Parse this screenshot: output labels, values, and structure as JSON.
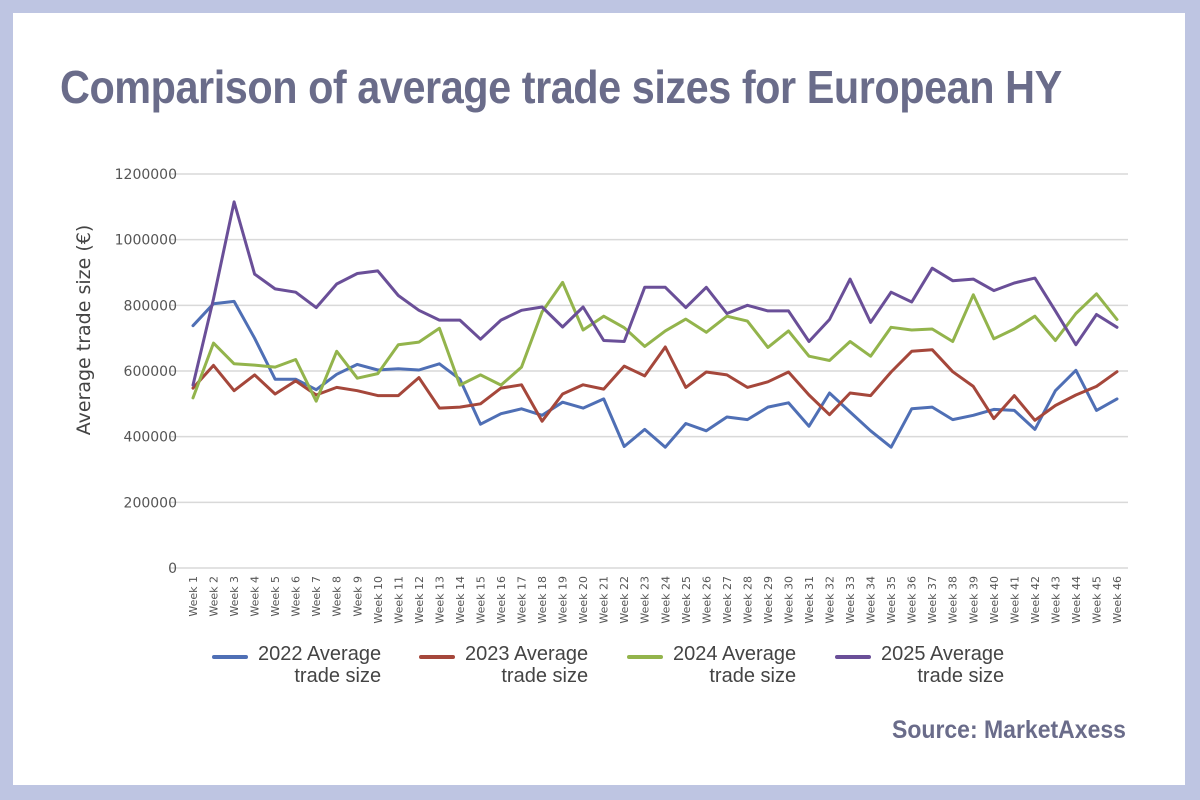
{
  "frame": {
    "border_color": "#bec5e2",
    "title": "Comparison of average trade sizes for European HY",
    "source": "Source: MarketAxess"
  },
  "chart_data": {
    "type": "line",
    "title": "Comparison of average trade sizes for European HY",
    "xlabel": "",
    "ylabel": "Average trade size (€)",
    "ylim": [
      0,
      1200000
    ],
    "yticks": [
      0,
      200000,
      400000,
      600000,
      800000,
      1000000,
      1200000
    ],
    "ytick_labels": [
      "0",
      "200000",
      "400000",
      "600000",
      "800000",
      "1000000",
      "1200000"
    ],
    "grid": true,
    "legend_position": "bottom",
    "x": [
      "Week 1",
      "Week 2",
      "Week 3",
      "Week 4",
      "Week 5",
      "Week 6",
      "Week 7",
      "Week 8",
      "Week 9",
      "Week 10",
      "Week 11",
      "Week 12",
      "Week 13",
      "Week 14",
      "Week 15",
      "Week 16",
      "Week 17",
      "Week 18",
      "Week 19",
      "Week 20",
      "Week 21",
      "Week 22",
      "Week 23",
      "Week 24",
      "Week 25",
      "Week 26",
      "Week 27",
      "Week 28",
      "Week 29",
      "Week 30",
      "Week 31",
      "Week 32",
      "Week 33",
      "Week 34",
      "Week 35",
      "Week 36",
      "Week 37",
      "Week 38",
      "Week 39",
      "Week 40",
      "Week 41",
      "Week 42",
      "Week 43",
      "Week 44",
      "Week 45",
      "Week 46"
    ],
    "series": [
      {
        "name": "2022 Average trade size",
        "legend_line1": "2022 Average",
        "legend_line2": "trade size",
        "color": "#4f6fb5",
        "values": [
          738000,
          805000,
          812000,
          700000,
          575000,
          575000,
          543000,
          590000,
          620000,
          603000,
          607000,
          603000,
          622000,
          575000,
          438000,
          470000,
          485000,
          465000,
          505000,
          487000,
          515000,
          370000,
          422000,
          368000,
          440000,
          418000,
          460000,
          452000,
          490000,
          503000,
          432000,
          533000,
          475000,
          418000,
          368000,
          485000,
          490000,
          452000,
          465000,
          483000,
          480000,
          422000,
          540000,
          602000,
          480000,
          515000
        ]
      },
      {
        "name": "2023 Average trade size",
        "legend_line1": "2023 Average",
        "legend_line2": "trade size",
        "color": "#a5473b",
        "values": [
          548000,
          617000,
          540000,
          588000,
          530000,
          570000,
          527000,
          550000,
          540000,
          525000,
          525000,
          580000,
          487000,
          490000,
          500000,
          548000,
          558000,
          447000,
          530000,
          558000,
          545000,
          615000,
          585000,
          673000,
          550000,
          597000,
          588000,
          550000,
          567000,
          597000,
          527000,
          467000,
          533000,
          525000,
          597000,
          660000,
          665000,
          598000,
          553000,
          455000,
          525000,
          450000,
          495000,
          527000,
          553000,
          598000
        ]
      },
      {
        "name": "2024 Average trade size",
        "legend_line1": "2024 Average",
        "legend_line2": "trade size",
        "color": "#93b44c",
        "values": [
          518000,
          685000,
          622000,
          618000,
          612000,
          635000,
          508000,
          660000,
          578000,
          592000,
          680000,
          688000,
          730000,
          557000,
          588000,
          557000,
          612000,
          780000,
          870000,
          725000,
          767000,
          732000,
          675000,
          722000,
          758000,
          718000,
          767000,
          752000,
          672000,
          722000,
          645000,
          632000,
          690000,
          645000,
          733000,
          725000,
          728000,
          690000,
          832000,
          698000,
          728000,
          767000,
          693000,
          775000,
          835000,
          757000
        ]
      },
      {
        "name": "2025 Average trade size",
        "legend_line1": "2025 Average",
        "legend_line2": "trade size",
        "color": "#6a4f98",
        "values": [
          557000,
          820000,
          1115000,
          895000,
          850000,
          840000,
          793000,
          865000,
          897000,
          905000,
          830000,
          785000,
          755000,
          755000,
          697000,
          755000,
          785000,
          795000,
          734000,
          795000,
          693000,
          690000,
          855000,
          855000,
          793000,
          855000,
          775000,
          800000,
          783000,
          783000,
          690000,
          757000,
          880000,
          748000,
          840000,
          810000,
          913000,
          875000,
          880000,
          845000,
          868000,
          883000,
          783000,
          680000,
          772000,
          733000
        ]
      }
    ]
  }
}
